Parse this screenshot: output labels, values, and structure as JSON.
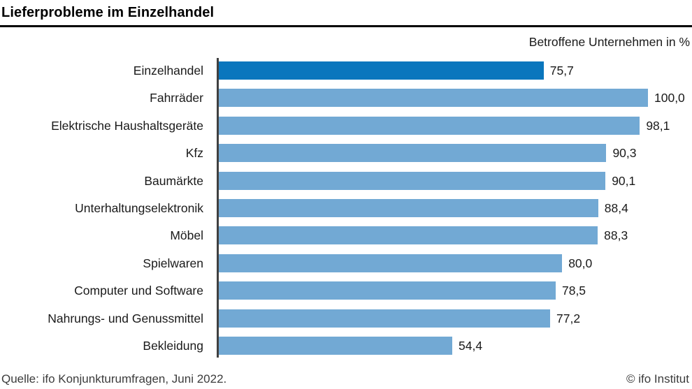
{
  "header": {
    "title": "Lieferprobleme im Einzelhandel",
    "subtitle": "Betroffene Unternehmen in %"
  },
  "chart_data": {
    "type": "bar",
    "orientation": "horizontal",
    "title": "Lieferprobleme im Einzelhandel",
    "subtitle": "Betroffene Unternehmen in %",
    "xlabel": "Betroffene Unternehmen in %",
    "ylabel": "",
    "xlim": [
      0,
      100
    ],
    "grid": false,
    "legend": "none",
    "categories": [
      "Einzelhandel",
      "Fahrräder",
      "Elektrische Haushaltsgeräte",
      "Kfz",
      "Baumärkte",
      "Unterhaltungselektronik",
      "Möbel",
      "Spielwaren",
      "Computer und Software",
      "Nahrungs- und Genussmittel",
      "Bekleidung"
    ],
    "values": [
      75.7,
      100.0,
      98.1,
      90.3,
      90.1,
      88.4,
      88.3,
      80.0,
      78.5,
      77.2,
      54.4
    ],
    "value_labels": [
      "75,7",
      "100,0",
      "98,1",
      "90,3",
      "90,1",
      "88,4",
      "88,3",
      "80,0",
      "78,5",
      "77,2",
      "54,4"
    ],
    "highlight_category": "Einzelhandel",
    "highlight_color": "#0a76bd",
    "bar_color": "#72a9d4",
    "axis_color": "#404040"
  },
  "footer": {
    "source": "Quelle: ifo Konjunkturumfragen, Juni 2022.",
    "copyright": "© ifo Institut"
  }
}
